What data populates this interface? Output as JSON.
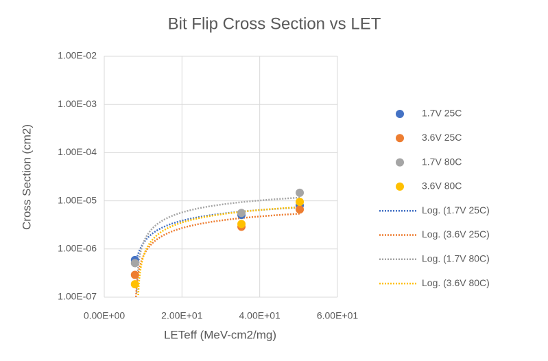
{
  "chart_data": {
    "type": "scatter",
    "title": "Bit Flip Cross Section vs LET",
    "x_label": "LETeff (MeV-cm2/mg)",
    "y_label": "Cross Section (cm2)",
    "log_y": true,
    "grid": true,
    "legend": "right",
    "xlim": [
      0,
      60
    ],
    "xticks": [
      {
        "value": 0,
        "label": "0.00E+00"
      },
      {
        "value": 20,
        "label": "2.00E+01"
      },
      {
        "value": 40,
        "label": "4.00E+01"
      },
      {
        "value": 60,
        "label": "6.00E+01"
      }
    ],
    "ylim": [
      1e-07,
      0.01
    ],
    "yticks": [
      {
        "value": 1e-07,
        "label": "1.00E-07"
      },
      {
        "value": 1e-06,
        "label": "1.00E-06"
      },
      {
        "value": 1e-05,
        "label": "1.00E-05"
      },
      {
        "value": 0.0001,
        "label": "1.00E-04"
      },
      {
        "value": 0.001,
        "label": "1.00E-03"
      },
      {
        "value": 0.01,
        "label": "1.00E-02"
      }
    ],
    "series": [
      {
        "name": "1.7V 25C",
        "color": "#4472c4",
        "x": [
          7.9,
          35.3,
          50.3
        ],
        "values": [
          5.9e-07,
          5.1e-06,
          8e-06
        ]
      },
      {
        "name": "3.6V 25C",
        "color": "#ed7d31",
        "x": [
          7.9,
          35.3,
          50.3
        ],
        "values": [
          2.9e-07,
          2.9e-06,
          6.6e-06
        ]
      },
      {
        "name": "1.7V 80C",
        "color": "#a5a5a5",
        "x": [
          7.9,
          35.3,
          50.3
        ],
        "values": [
          5.1e-07,
          5.6e-06,
          1.47e-05
        ]
      },
      {
        "name": "3.6V 80C",
        "color": "#ffc000",
        "x": [
          7.9,
          35.3,
          50.3
        ],
        "values": [
          1.86e-07,
          3.3e-06,
          9.5e-06
        ]
      }
    ],
    "trendlines": [
      {
        "name": "Log. (1.7V 25C)",
        "color": "#4472c4",
        "type": "log"
      },
      {
        "name": "Log. (3.6V 25C)",
        "color": "#ed7d31",
        "type": "log"
      },
      {
        "name": "Log. (1.7V 80C)",
        "color": "#a5a5a5",
        "type": "log"
      },
      {
        "name": "Log. (3.6V 80C)",
        "color": "#ffc000",
        "type": "log"
      }
    ]
  }
}
